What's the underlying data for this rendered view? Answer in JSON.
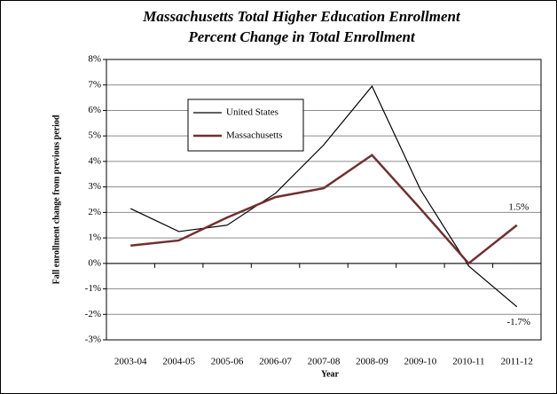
{
  "chart_data": {
    "type": "line",
    "title": "Massachusetts Total Higher Education Enrollment",
    "subtitle": "Percent Change in Total Enrollment",
    "x_label": "Year",
    "y_label": "Fall enrollment change from previous period",
    "categories": [
      "2003-04",
      "2004-05",
      "2005-06",
      "2006-07",
      "2007-08",
      "2008-09",
      "2009-10",
      "2010-11",
      "2011-12"
    ],
    "series": [
      {
        "name": "United States",
        "color": "#000000",
        "values": [
          2.15,
          1.25,
          1.5,
          2.75,
          4.65,
          6.95,
          2.9,
          -0.1,
          -1.7
        ],
        "value_labels": [
          null,
          null,
          null,
          null,
          null,
          null,
          null,
          null,
          "-1.7%"
        ]
      },
      {
        "name": "Massachusetts",
        "color": "#722f2f",
        "values": [
          0.7,
          0.9,
          1.8,
          2.6,
          2.95,
          4.25,
          2.15,
          0.0,
          1.5
        ],
        "value_labels": [
          null,
          null,
          null,
          null,
          null,
          null,
          null,
          null,
          "1.5%"
        ]
      }
    ],
    "ylim": [
      -3,
      8
    ],
    "yticks": [
      {
        "value": -3,
        "label": "-3%"
      },
      {
        "value": -2,
        "label": "-2%"
      },
      {
        "value": -1,
        "label": "-1%"
      },
      {
        "value": 0,
        "label": "0%"
      },
      {
        "value": 1,
        "label": "1%"
      },
      {
        "value": 2,
        "label": "2%"
      },
      {
        "value": 3,
        "label": "3%"
      },
      {
        "value": 4,
        "label": "4%"
      },
      {
        "value": 5,
        "label": "5%"
      },
      {
        "value": 6,
        "label": "6%"
      },
      {
        "value": 7,
        "label": "7%"
      },
      {
        "value": 8,
        "label": "8%"
      }
    ],
    "grid": true
  }
}
